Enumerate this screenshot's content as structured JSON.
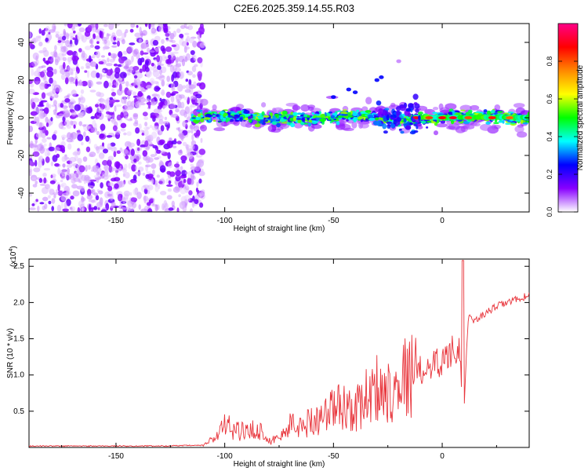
{
  "chart_data": [
    {
      "type": "heatmap",
      "title": "C2E6.2025.359.14.55.R03",
      "xlabel": "Height of straight line (km)",
      "ylabel": "Frequency (Hz)",
      "xlim": [
        -190,
        40
      ],
      "ylim": [
        -50,
        50
      ],
      "x_ticks": [
        -150,
        -100,
        -50,
        0
      ],
      "y_ticks": [
        -40,
        -20,
        0,
        20,
        40
      ],
      "colorbar": {
        "label": "Normalized spectral amplitude",
        "range": [
          0,
          1
        ],
        "ticks": [
          0.0,
          0.2,
          0.4,
          0.6,
          0.8
        ],
        "colors": [
          "#ffffff",
          "#8800ff",
          "#0000ff",
          "#00ffff",
          "#00ff00",
          "#ffff00",
          "#ff8800",
          "#ff0000",
          "#ff0088"
        ]
      },
      "features": [
        {
          "name": "noise-region",
          "x_range": [
            -190,
            -110
          ],
          "freq_range": [
            -50,
            50
          ],
          "amplitude": 0.05
        },
        {
          "name": "main-band",
          "x_range": [
            -115,
            40
          ],
          "center_hz": 0,
          "halfwidth_hz": 3,
          "amplitude": 0.45
        },
        {
          "name": "harmonic-streak",
          "x_range": [
            -50,
            -20
          ],
          "center_hz_range": [
            10,
            30
          ],
          "amplitude": 0.3
        },
        {
          "name": "hot-spots",
          "x_range": [
            -12,
            32
          ],
          "center_hz": 0,
          "amplitude": 0.85
        }
      ]
    },
    {
      "type": "line",
      "xlabel": "Height of straight line (km)",
      "ylabel": "SNR (10 * v/v)",
      "y_multiplier": "(x10",
      "y_multiplier_exp": "4",
      "xlim": [
        -190,
        40
      ],
      "ylim": [
        0,
        2.6
      ],
      "x_ticks": [
        -150,
        -100,
        -50,
        0
      ],
      "y_ticks": [
        0.5,
        1.0,
        1.5,
        2.0,
        2.5
      ],
      "color": "#e8343b",
      "series": [
        {
          "name": "SNR",
          "x": [
            -190,
            -170,
            -150,
            -130,
            -110,
            -105,
            -100,
            -95,
            -90,
            -85,
            -80,
            -75,
            -70,
            -65,
            -60,
            -55,
            -50,
            -45,
            -40,
            -35,
            -30,
            -25,
            -20,
            -15,
            -10,
            -5,
            0,
            5,
            8,
            10,
            12,
            15,
            20,
            25,
            30,
            35,
            40
          ],
          "values": [
            0.02,
            0.02,
            0.02,
            0.02,
            0.03,
            0.12,
            0.3,
            0.25,
            0.2,
            0.28,
            0.1,
            0.12,
            0.32,
            0.28,
            0.38,
            0.42,
            0.55,
            0.58,
            0.5,
            0.7,
            0.82,
            0.78,
            0.95,
            1.0,
            1.05,
            1.15,
            1.2,
            1.35,
            1.4,
            0.5,
            1.8,
            1.75,
            1.85,
            1.95,
            2.0,
            2.05,
            2.1
          ]
        }
      ]
    }
  ]
}
